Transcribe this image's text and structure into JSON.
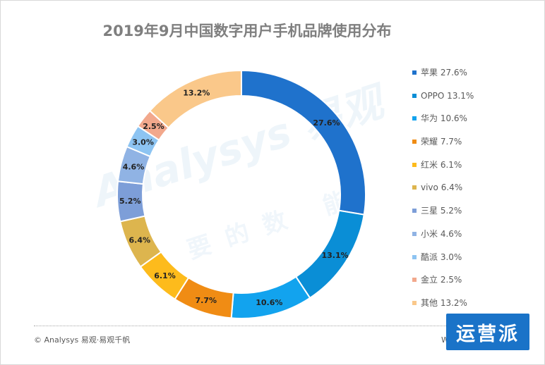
{
  "chart_data": {
    "type": "donut",
    "title": "2019年9月中国数字用户手机品牌使用分布",
    "categories": [
      "苹果",
      "OPPO",
      "华为",
      "荣耀",
      "红米",
      "vivo",
      "三星",
      "小米",
      "酷派",
      "金立",
      "其他"
    ],
    "values": [
      27.6,
      13.1,
      10.6,
      7.7,
      6.1,
      6.4,
      5.2,
      4.6,
      3.0,
      2.5,
      13.2
    ],
    "labels": [
      "27.6%",
      "13.1%",
      "10.6%",
      "7.7%",
      "6.1%",
      "6.4%",
      "5.2%",
      "4.6%",
      "3.0%",
      "2.5%",
      "13.2%"
    ],
    "colors": [
      "#1F72CC",
      "#0A8ED6",
      "#12A3EE",
      "#F08C14",
      "#FDBB1C",
      "#DDB54E",
      "#7D9ED8",
      "#90B3E4",
      "#8DC4F2",
      "#F2A88C",
      "#FAC88A"
    ],
    "legend_labels": [
      "苹果 27.6%",
      "OPPO 13.1%",
      "华为 10.6%",
      "荣耀 7.7%",
      "红米 6.1%",
      "vivo 6.4%",
      "三星 5.2%",
      "小米 4.6%",
      "酷派 3.0%",
      "金立 2.5%",
      "其他 13.2%"
    ],
    "legend_position": "right"
  },
  "watermark": {
    "logo_text": "Analysys 易观",
    "tagline": "要的数 能"
  },
  "footer": {
    "source": "© Analysys 易观·易观千帆",
    "right_text": "W"
  },
  "badge": {
    "text": "运营派"
  }
}
